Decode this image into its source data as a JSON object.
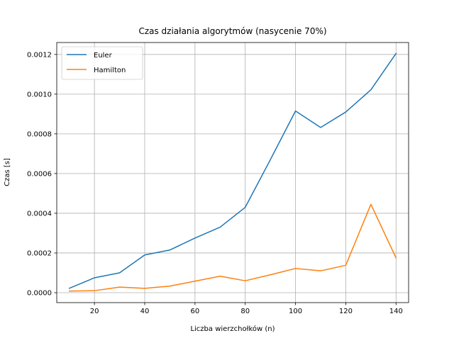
{
  "chart_data": {
    "type": "line",
    "title": "Czas działania algorytmów (nasycenie 70%)",
    "xlabel": "Liczba wierzchołków (n)",
    "ylabel": "Czas [s]",
    "x": [
      10,
      20,
      30,
      40,
      50,
      60,
      70,
      80,
      90,
      100,
      110,
      120,
      130,
      140
    ],
    "xlim": [
      5,
      145
    ],
    "ylim": [
      -5e-05,
      0.00126
    ],
    "xticks": [
      20,
      40,
      60,
      80,
      100,
      120,
      140
    ],
    "xtick_labels": [
      "20",
      "40",
      "60",
      "80",
      "100",
      "120",
      "140"
    ],
    "yticks": [
      0,
      0.0002,
      0.0004,
      0.0006,
      0.0008,
      0.001,
      0.0012
    ],
    "ytick_labels": [
      "0.0000",
      "0.0002",
      "0.0004",
      "0.0006",
      "0.0008",
      "0.0010",
      "0.0012"
    ],
    "grid": true,
    "legend_position": "top-left",
    "series": [
      {
        "name": "Euler",
        "color": "#1f77b4",
        "values": [
          2.2e-05,
          7.5e-05,
          0.0001,
          0.00019,
          0.000215,
          0.000275,
          0.00033,
          0.00043,
          0.00067,
          0.000915,
          0.000832,
          0.00091,
          0.001022,
          0.001205
        ]
      },
      {
        "name": "Hamilton",
        "color": "#ff7f0e",
        "values": [
          8e-06,
          1e-05,
          2.8e-05,
          2.2e-05,
          3.3e-05,
          5.8e-05,
          8.3e-05,
          6e-05,
          9e-05,
          0.000122,
          0.00011,
          0.000138,
          0.000445,
          0.000175
        ]
      }
    ]
  }
}
